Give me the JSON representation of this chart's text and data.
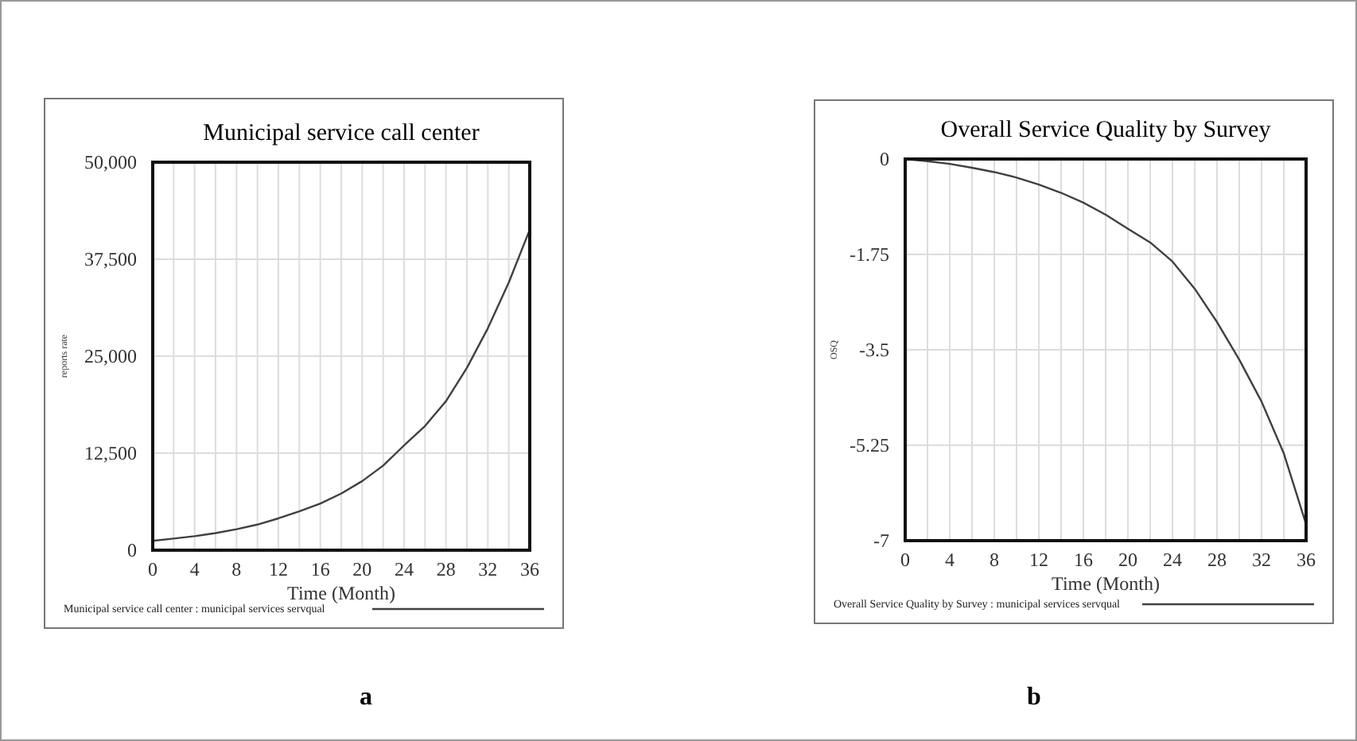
{
  "chart_data": [
    {
      "type": "line",
      "title": "Municipal service call center",
      "xlabel": "Time (Month)",
      "ylabel": "reports rate",
      "annotations": [
        "a"
      ],
      "grid": true,
      "legend": "bottom",
      "xlim": [
        0,
        36
      ],
      "xticks": [
        0,
        {
          "value": 2,
          "label": null
        },
        4,
        {
          "value": 6,
          "label": null
        },
        8,
        {
          "value": 10,
          "label": null
        },
        12,
        {
          "value": 14,
          "label": null
        },
        16,
        {
          "value": 18,
          "label": null
        },
        20,
        {
          "value": 22,
          "label": null
        },
        24,
        {
          "value": 26,
          "label": null
        },
        28,
        {
          "value": 30,
          "label": null
        },
        32,
        {
          "value": 34,
          "label": null
        },
        36
      ],
      "ylim": [
        0,
        50000
      ],
      "yticks": [
        0,
        {
          "value": 12500,
          "label": "12,500"
        },
        {
          "value": 25000,
          "label": "25,000"
        },
        {
          "value": 37500,
          "label": "37,500"
        },
        {
          "value": 50000,
          "label": "50,000"
        }
      ],
      "x": [
        0,
        2,
        4,
        6,
        8,
        10,
        12,
        14,
        16,
        18,
        20,
        22,
        24,
        26,
        28,
        30,
        32,
        34,
        36
      ],
      "series": [
        {
          "name": "Municipal service call center : municipal services servqual",
          "color": "#404040",
          "values": [
            1200,
            1500,
            1800,
            2200,
            2700,
            3300,
            4100,
            5000,
            6000,
            7300,
            8900,
            10900,
            13500,
            16000,
            19200,
            23500,
            28600,
            34500,
            41300
          ]
        }
      ]
    },
    {
      "type": "line",
      "title": "Overall Service Quality by Survey",
      "xlabel": "Time (Month)",
      "ylabel": "OSQ",
      "annotations": [
        "b"
      ],
      "grid": true,
      "legend": "bottom",
      "xlim": [
        0,
        36
      ],
      "xticks": [
        0,
        {
          "value": 2,
          "label": null
        },
        4,
        {
          "value": 6,
          "label": null
        },
        8,
        {
          "value": 10,
          "label": null
        },
        12,
        {
          "value": 14,
          "label": null
        },
        16,
        {
          "value": 18,
          "label": null
        },
        20,
        {
          "value": 22,
          "label": null
        },
        24,
        {
          "value": 26,
          "label": null
        },
        28,
        {
          "value": 30,
          "label": null
        },
        32,
        {
          "value": 34,
          "label": null
        },
        36
      ],
      "ylim": [
        -7,
        0
      ],
      "yticks": [
        -7,
        -5.25,
        -3.5,
        -1.75,
        0
      ],
      "x": [
        0,
        2,
        4,
        6,
        8,
        10,
        12,
        14,
        16,
        18,
        20,
        22,
        24,
        26,
        28,
        30,
        32,
        34,
        36
      ],
      "series": [
        {
          "name": "Overall Service Quality by Survey : municipal services servqual",
          "color": "#404040",
          "values": [
            0,
            -0.04,
            -0.09,
            -0.16,
            -0.24,
            -0.34,
            -0.47,
            -0.62,
            -0.8,
            -1.02,
            -1.28,
            -1.53,
            -1.88,
            -2.38,
            -2.99,
            -3.68,
            -4.45,
            -5.4,
            -6.7
          ]
        }
      ]
    }
  ]
}
